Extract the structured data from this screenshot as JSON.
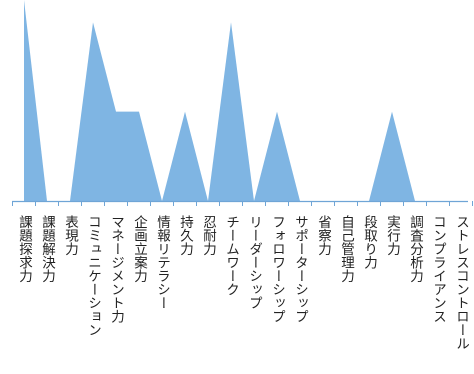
{
  "chart_data": {
    "type": "area",
    "categories": [
      "課題探求力",
      "課題解決力",
      "表現力",
      "コミュニケーション",
      "マネージメント力",
      "企画立案力",
      "情報リテラシー",
      "持久力",
      "忍耐力",
      "チームワーク",
      "リーダーシップ",
      "フォロワーシップ",
      "サポーターシップ",
      "省察力",
      "自己管理力",
      "段取り力",
      "実行力",
      "調査分析力",
      "コンプライアンス",
      "ストレスコントロール"
    ],
    "values": [
      9,
      0,
      0,
      8,
      4,
      4,
      0,
      4,
      0,
      8,
      0,
      4,
      0,
      0,
      0,
      0,
      4,
      0,
      0,
      0
    ],
    "ylim": [
      0,
      9
    ],
    "grid": false,
    "legend": "none",
    "colors": {
      "fill": "#7fb5e3",
      "axis": "#6fa5d6"
    }
  }
}
